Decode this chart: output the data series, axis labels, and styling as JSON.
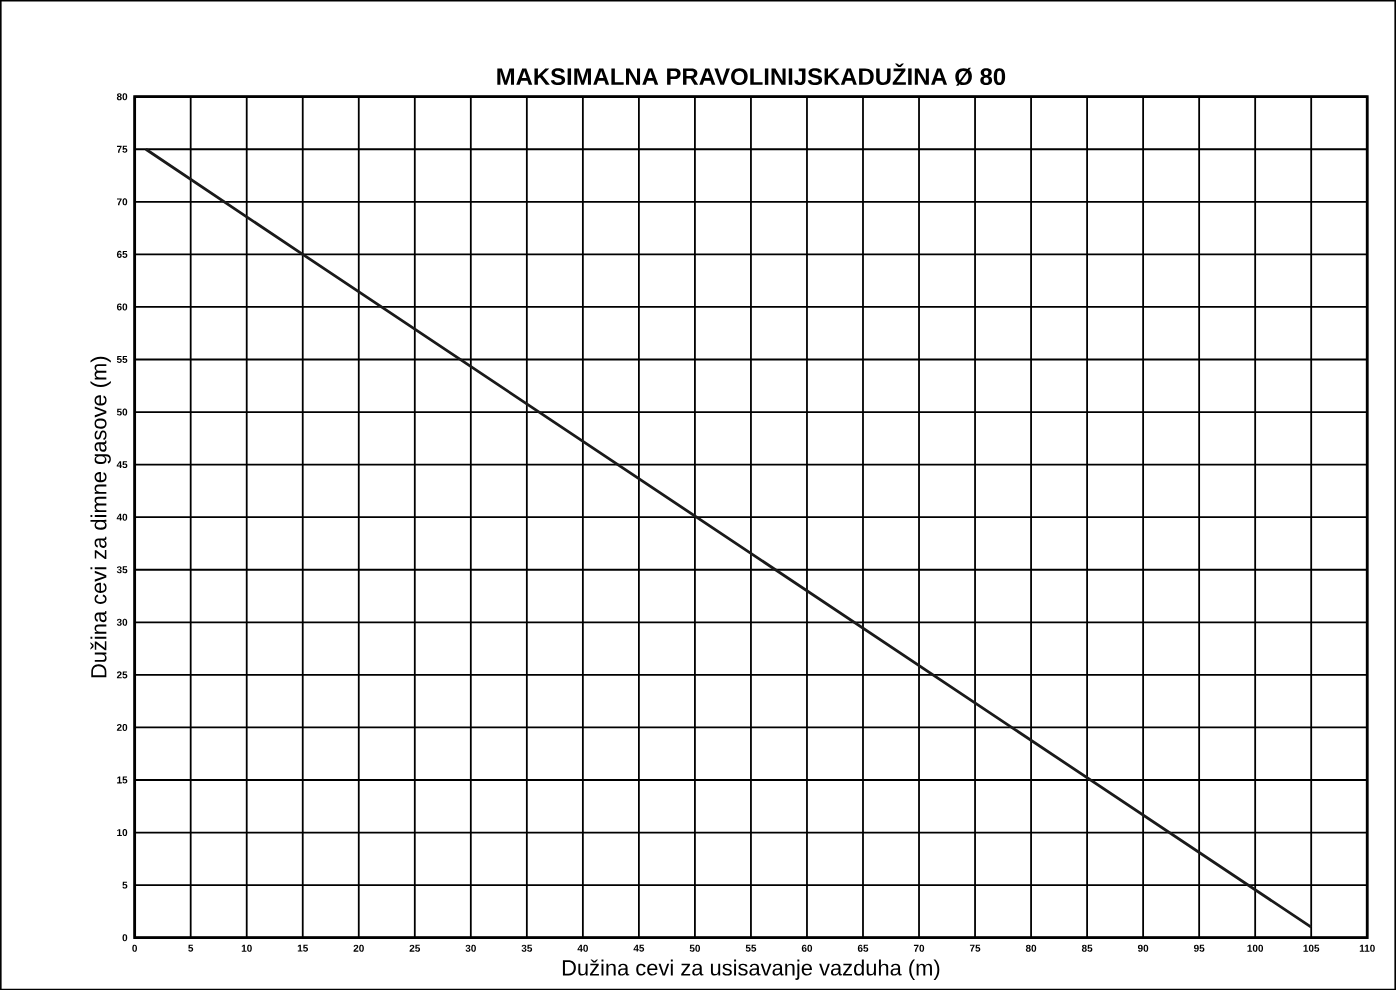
{
  "chart_data": {
    "type": "line",
    "title": "MAKSIMALNA PRAVOLINIJSKADUŽINA Ø 80",
    "xlabel": "Dužina cevi za usisavanje vazduha (m)",
    "ylabel": "Dužina cevi za dimne gasove (m)",
    "x": [
      1,
      15,
      105
    ],
    "series": [
      {
        "color": "#1a1a1a",
        "values": [
          75,
          65,
          1
        ]
      }
    ],
    "xlim": [
      0,
      110
    ],
    "ylim": [
      0,
      80
    ],
    "xticks": [
      0,
      5,
      10,
      15,
      20,
      25,
      30,
      35,
      40,
      45,
      50,
      55,
      60,
      65,
      70,
      75,
      80,
      85,
      90,
      95,
      100,
      105,
      110
    ],
    "yticks": [
      0,
      5,
      10,
      15,
      20,
      25,
      30,
      35,
      40,
      45,
      50,
      55,
      60,
      65,
      70,
      75,
      80
    ],
    "grid": true,
    "marker": "none",
    "line_style": "solid"
  }
}
